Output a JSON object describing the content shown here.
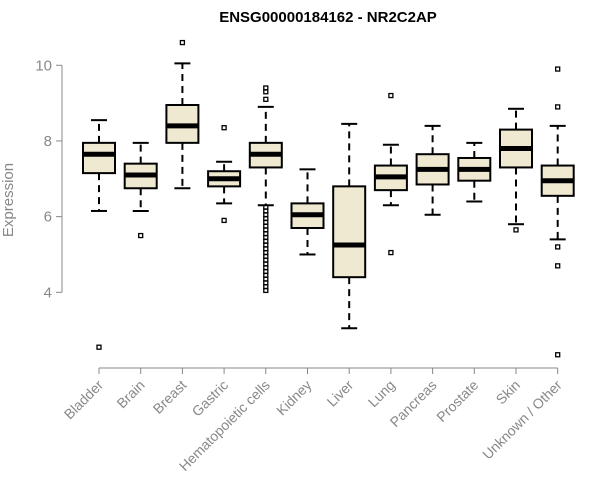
{
  "chart_data": {
    "type": "boxplot",
    "title": "ENSG00000184162 - NR2C2AP",
    "xlabel": "",
    "ylabel": "Expression",
    "ylim": [
      2.0,
      10.8
    ],
    "yticks": [
      4,
      6,
      8,
      10
    ],
    "box_fill": "#f0e9d2",
    "categories": [
      "Bladder",
      "Brain",
      "Breast",
      "Gastric",
      "Hematopoietic cells",
      "Kidney",
      "Liver",
      "Lung",
      "Pancreas",
      "Prostate",
      "Skin",
      "Unknown / Other"
    ],
    "boxes": [
      {
        "q1": 7.15,
        "median": 7.65,
        "q3": 7.95,
        "whisker_low": 6.15,
        "whisker_high": 8.55,
        "outliers": [
          2.55
        ]
      },
      {
        "q1": 6.75,
        "median": 7.1,
        "q3": 7.4,
        "whisker_low": 6.15,
        "whisker_high": 7.95,
        "outliers": [
          5.5
        ]
      },
      {
        "q1": 7.95,
        "median": 8.4,
        "q3": 8.95,
        "whisker_low": 6.75,
        "whisker_high": 10.05,
        "outliers": [
          10.6
        ]
      },
      {
        "q1": 6.8,
        "median": 7.0,
        "q3": 7.2,
        "whisker_low": 6.35,
        "whisker_high": 7.45,
        "outliers": [
          8.35,
          5.9
        ]
      },
      {
        "q1": 7.3,
        "median": 7.65,
        "q3": 7.95,
        "whisker_low": 6.3,
        "whisker_high": 8.9,
        "outliers": [
          9.1,
          9.3,
          9.4,
          6.25,
          6.15,
          6.05,
          5.95,
          5.85,
          5.75,
          5.65,
          5.55,
          5.45,
          5.35,
          5.25,
          5.15,
          5.05,
          4.95,
          4.85,
          4.75,
          4.65,
          4.55,
          4.45,
          4.35,
          4.25,
          4.15,
          4.05
        ]
      },
      {
        "q1": 5.7,
        "median": 6.05,
        "q3": 6.35,
        "whisker_low": 5.0,
        "whisker_high": 7.25,
        "outliers": []
      },
      {
        "q1": 4.4,
        "median": 5.25,
        "q3": 6.8,
        "whisker_low": 3.05,
        "whisker_high": 8.45,
        "outliers": []
      },
      {
        "q1": 6.7,
        "median": 7.05,
        "q3": 7.35,
        "whisker_low": 6.3,
        "whisker_high": 7.9,
        "outliers": [
          9.2,
          5.05
        ]
      },
      {
        "q1": 6.85,
        "median": 7.25,
        "q3": 7.65,
        "whisker_low": 6.05,
        "whisker_high": 8.4,
        "outliers": []
      },
      {
        "q1": 6.95,
        "median": 7.25,
        "q3": 7.55,
        "whisker_low": 6.4,
        "whisker_high": 7.95,
        "outliers": []
      },
      {
        "q1": 7.3,
        "median": 7.8,
        "q3": 8.3,
        "whisker_low": 5.8,
        "whisker_high": 8.85,
        "outliers": [
          5.65
        ]
      },
      {
        "q1": 6.55,
        "median": 6.95,
        "q3": 7.35,
        "whisker_low": 5.4,
        "whisker_high": 8.4,
        "outliers": [
          9.9,
          8.9,
          5.2,
          4.7,
          2.35
        ]
      }
    ]
  }
}
